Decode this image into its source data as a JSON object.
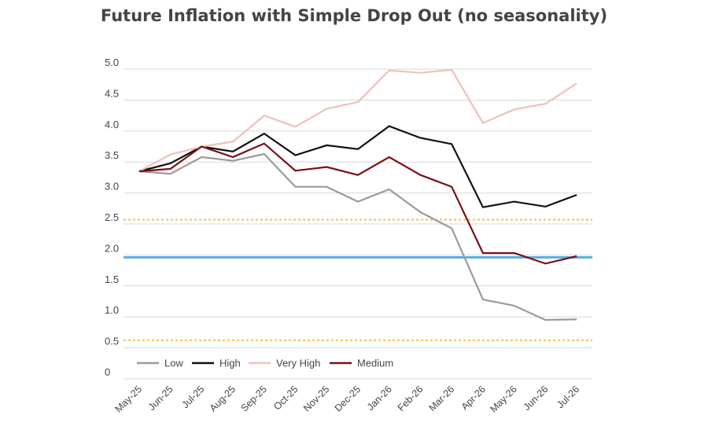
{
  "chart_data": {
    "type": "line",
    "title": "Future Inflation with Simple Drop Out (no seasonality)",
    "xlabel": "",
    "ylabel": "",
    "categories": [
      "May-25",
      "Jun-25",
      "Jul-25",
      "Aug-25",
      "Sep-25",
      "Oct-25",
      "Nov-25",
      "Dec-25",
      "Jan-26",
      "Feb-26",
      "Mar-26",
      "Apr-26",
      "May-26",
      "Jun-26",
      "Jul-26"
    ],
    "ylim": [
      0,
      5.0
    ],
    "yticks": [
      "0",
      "0.5",
      "1.0",
      "1.5",
      "2.0",
      "2.5",
      "3.0",
      "3.5",
      "4.0",
      "4.5",
      "5.0"
    ],
    "grid": true,
    "legend_position": "bottom-left",
    "series": [
      {
        "name": "Low",
        "color": "#9b9b9b",
        "values": [
          3.35,
          3.31,
          3.58,
          3.52,
          3.63,
          3.1,
          3.1,
          2.86,
          3.06,
          2.69,
          2.43,
          1.28,
          1.18,
          0.95,
          0.96
        ]
      },
      {
        "name": "High",
        "color": "#111111",
        "values": [
          3.35,
          3.48,
          3.75,
          3.67,
          3.96,
          3.61,
          3.77,
          3.71,
          4.08,
          3.89,
          3.79,
          2.77,
          2.86,
          2.78,
          2.97
        ]
      },
      {
        "name": "Very High",
        "color": "#efc1b9",
        "values": [
          3.35,
          3.62,
          3.75,
          3.83,
          4.25,
          4.07,
          4.36,
          4.47,
          4.98,
          4.94,
          4.99,
          4.13,
          4.35,
          4.44,
          4.77
        ]
      },
      {
        "name": "Medium",
        "color": "#7a1014",
        "values": [
          3.35,
          3.39,
          3.75,
          3.58,
          3.8,
          3.36,
          3.42,
          3.29,
          3.58,
          3.29,
          3.1,
          2.03,
          2.03,
          1.86,
          1.98
        ]
      }
    ],
    "reference_lines": [
      {
        "value": 1.96,
        "color": "#5aaee0",
        "style": "solid"
      },
      {
        "value": 2.57,
        "color": "#f2c24a",
        "style": "dotted"
      },
      {
        "value": 0.62,
        "color": "#f2c24a",
        "style": "dotted"
      }
    ]
  }
}
